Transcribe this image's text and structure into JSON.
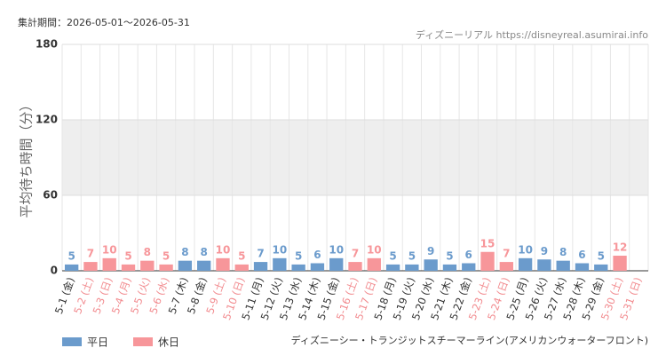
{
  "chart_data": {
    "type": "bar",
    "subtitle": "集計期間：2026-05-01〜2026-05-31",
    "source": "ディズニーリアル https://disneyreal.asumirai.info",
    "ylabel": "平均待ち時間（分）",
    "note": "ディズニーシー・トランジットスチーマーライン(アメリカンウォーターフロント)",
    "categories": [
      "5-1 (金)",
      "5-2 (土)",
      "5-3 (日)",
      "5-4 (月)",
      "5-5 (火)",
      "5-6 (水)",
      "5-7 (木)",
      "5-8 (金)",
      "5-9 (土)",
      "5-10 (日)",
      "5-11 (月)",
      "5-12 (火)",
      "5-13 (水)",
      "5-14 (木)",
      "5-15 (金)",
      "5-16 (土)",
      "5-17 (日)",
      "5-18 (月)",
      "5-19 (火)",
      "5-20 (水)",
      "5-21 (木)",
      "5-22 (金)",
      "5-23 (土)",
      "5-24 (日)",
      "5-25 (月)",
      "5-26 (火)",
      "5-27 (水)",
      "5-28 (木)",
      "5-29 (金)",
      "5-30 (土)",
      "5-31 (日)"
    ],
    "category_colors": [
      "#333333",
      "#f28b8f",
      "#f28b8f",
      "#f28b8f",
      "#f28b8f",
      "#f28b8f",
      "#333333",
      "#333333",
      "#f28b8f",
      "#f28b8f",
      "#333333",
      "#333333",
      "#333333",
      "#333333",
      "#333333",
      "#f28b8f",
      "#f28b8f",
      "#333333",
      "#333333",
      "#333333",
      "#333333",
      "#333333",
      "#f28b8f",
      "#f28b8f",
      "#333333",
      "#333333",
      "#333333",
      "#333333",
      "#333333",
      "#f28b8f",
      "#f28b8f"
    ],
    "series": [
      {
        "name": "平日",
        "color": "#6b9bcc",
        "values": [
          5,
          null,
          null,
          null,
          null,
          null,
          8,
          8,
          null,
          null,
          7,
          10,
          5,
          6,
          10,
          null,
          null,
          5,
          5,
          9,
          5,
          6,
          null,
          null,
          10,
          9,
          8,
          6,
          5,
          null,
          null
        ]
      },
      {
        "name": "休日",
        "color": "#f7969a",
        "values": [
          null,
          7,
          10,
          5,
          8,
          5,
          null,
          null,
          10,
          5,
          null,
          null,
          null,
          null,
          null,
          7,
          10,
          null,
          null,
          null,
          null,
          null,
          15,
          7,
          null,
          null,
          null,
          null,
          null,
          12,
          null
        ]
      }
    ],
    "ylim": [
      0,
      180
    ],
    "yticks": [
      0,
      60,
      120,
      180
    ],
    "grid": true
  }
}
